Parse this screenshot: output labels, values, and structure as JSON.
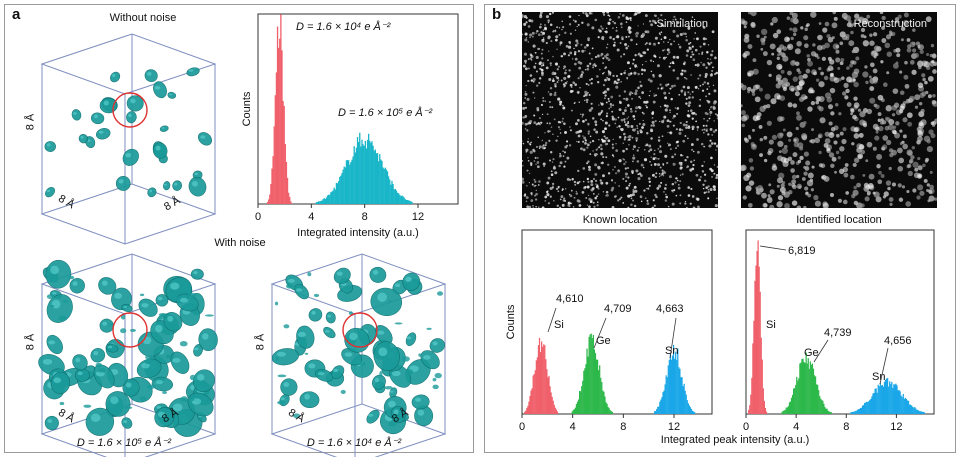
{
  "panel_a": {
    "label": "a",
    "without_noise_title": "Without noise",
    "with_noise_title": "With noise",
    "cube_axis_label": "8 Å",
    "cube1_dose": "D = 1.6 × 10⁵ e Å⁻²",
    "cube2_dose": "D = 1.6 × 10⁴ e Å⁻²"
  },
  "panel_b": {
    "label": "b",
    "sim_title": "Simulation",
    "recon_title": "Reconstruction",
    "known_title": "Known location",
    "identified_title": "Identified location",
    "xlabel": "Integrated peak intensity (a.u.)"
  },
  "colors": {
    "si": "#f0606a",
    "ge": "#2db84a",
    "sn": "#1aa7e8",
    "cyan": "#18b6c8",
    "blob": "#1a9a9a",
    "circle": "#e03030"
  },
  "chart_data": [
    {
      "type": "bar",
      "title": "",
      "xlabel": "Integrated intensity (a.u.)",
      "ylabel": "Counts",
      "xlim": [
        0,
        15
      ],
      "xticks": [
        0,
        4,
        8,
        12
      ],
      "series": [
        {
          "name": "D = 1.6 × 10⁴ e Å⁻²",
          "center": 1.6,
          "sd": 0.3,
          "peak": 1.0
        },
        {
          "name": "D = 1.6 × 10⁵ e Å⁻²",
          "center": 8.0,
          "sd": 1.35,
          "peak": 0.36
        }
      ]
    },
    {
      "type": "bar",
      "title": "Known location",
      "xlabel": "",
      "ylabel": "Counts",
      "xlim": [
        0,
        15
      ],
      "xticks": [
        0,
        4,
        8,
        12
      ],
      "series": [
        {
          "name": "Si",
          "count": "4,610",
          "center": 1.5,
          "sd": 0.5,
          "peak": 0.42
        },
        {
          "name": "Ge",
          "count": "4,709",
          "center": 5.5,
          "sd": 0.6,
          "peak": 0.42
        },
        {
          "name": "Sn",
          "count": "4,663",
          "center": 12.0,
          "sd": 0.6,
          "peak": 0.37
        }
      ]
    },
    {
      "type": "bar",
      "title": "Identified location",
      "xlabel": "",
      "ylabel": "",
      "xlim": [
        0,
        15
      ],
      "xticks": [
        0,
        4,
        8,
        12
      ],
      "series": [
        {
          "name": "",
          "count": "6,819",
          "center": 0.9,
          "sd": 0.25,
          "peak": 1.0
        },
        {
          "name": "Si",
          "count": "",
          "center": 1.4,
          "sd": 0.3,
          "peak": 0.0
        },
        {
          "name": "Ge",
          "count": "4,739",
          "center": 4.8,
          "sd": 0.75,
          "peak": 0.32
        },
        {
          "name": "Sn",
          "count": "4,656",
          "center": 11.3,
          "sd": 1.2,
          "peak": 0.18
        }
      ]
    }
  ]
}
